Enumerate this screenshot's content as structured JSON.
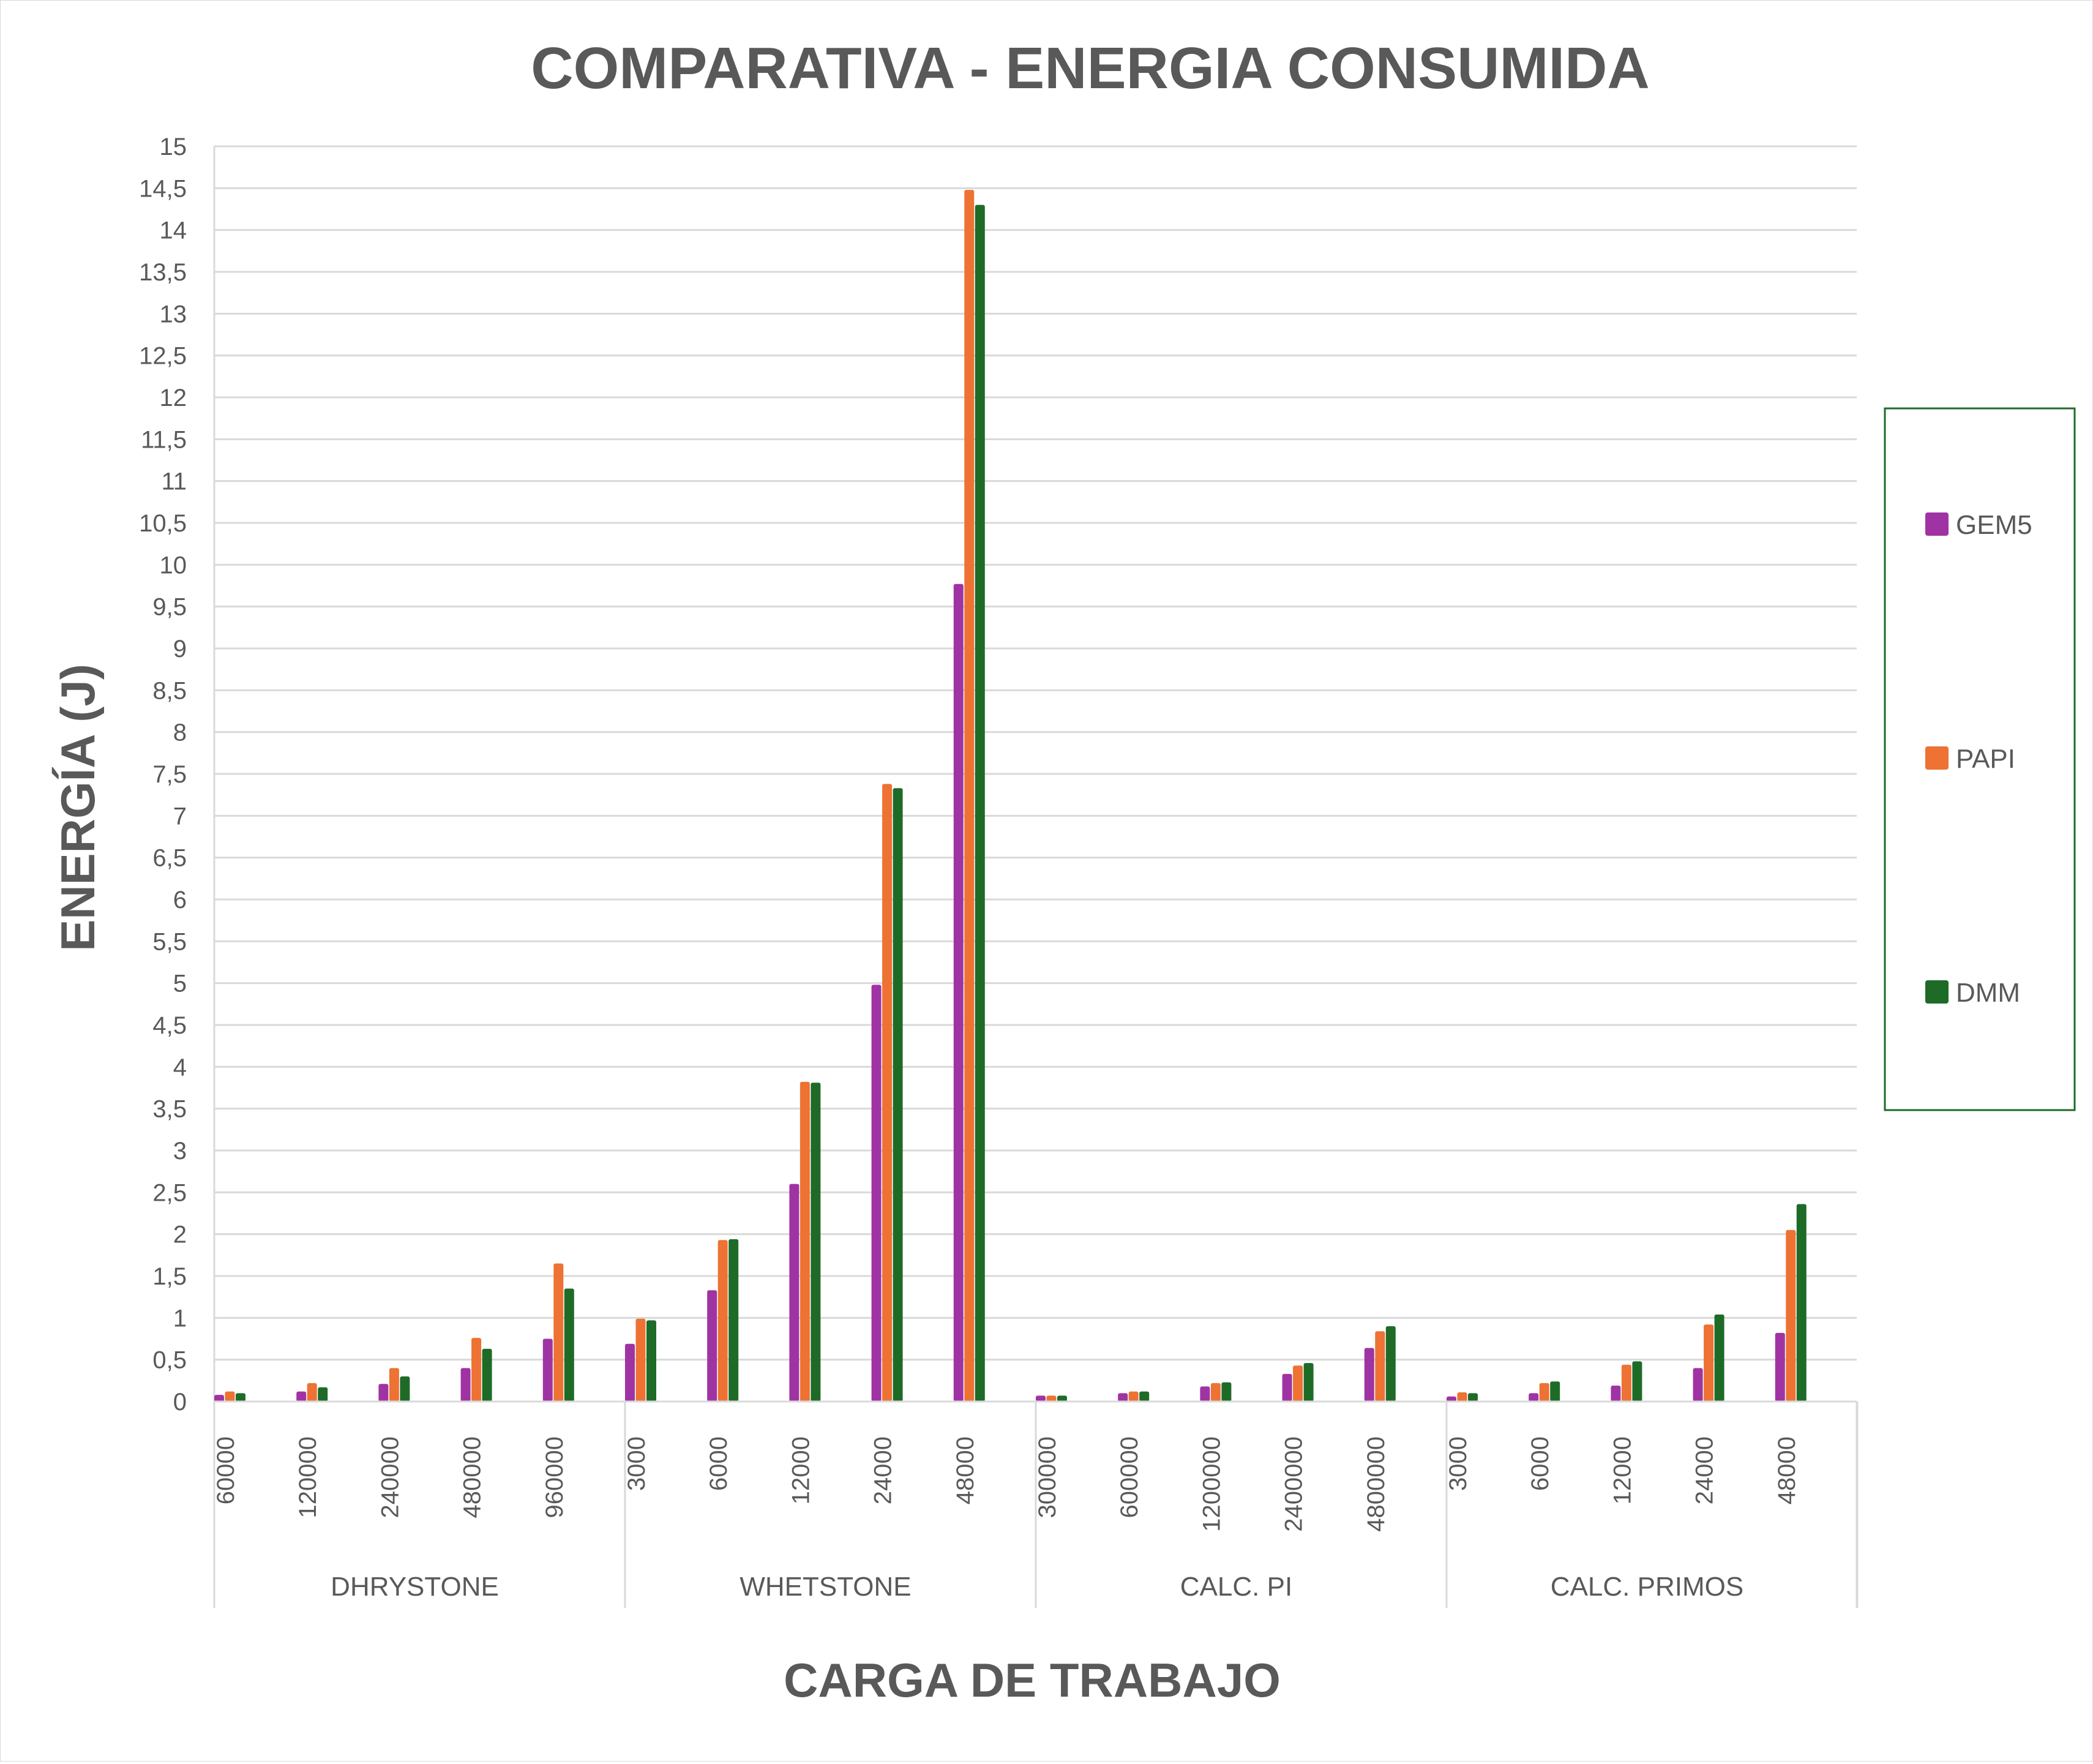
{
  "chart_data": {
    "type": "bar",
    "title": "COMPARATIVA - ENERGIA CONSUMIDA",
    "xlabel": "CARGA DE TRABAJO",
    "ylabel": "ENERGÍA (J)",
    "ylim": [
      0,
      15
    ],
    "ytick_step": 0.5,
    "grid": true,
    "legend_position": "right",
    "groups": [
      {
        "name": "DHRYSTONE",
        "categories": [
          "60000",
          "120000",
          "240000",
          "480000",
          "960000"
        ]
      },
      {
        "name": "WHETSTONE",
        "categories": [
          "3000",
          "6000",
          "12000",
          "24000",
          "48000"
        ]
      },
      {
        "name": "CALC. PI",
        "categories": [
          "300000",
          "600000",
          "1200000",
          "2400000",
          "4800000"
        ]
      },
      {
        "name": "CALC. PRIMOS",
        "categories": [
          "3000",
          "6000",
          "12000",
          "24000",
          "48000"
        ]
      }
    ],
    "categories": [
      "60000",
      "120000",
      "240000",
      "480000",
      "960000",
      "3000",
      "6000",
      "12000",
      "24000",
      "48000",
      "300000",
      "600000",
      "1200000",
      "2400000",
      "4800000",
      "3000",
      "6000",
      "12000",
      "24000",
      "48000"
    ],
    "series": [
      {
        "name": "GEM5",
        "color": "#a033a3",
        "values": [
          0.08,
          0.12,
          0.21,
          0.4,
          0.75,
          0.69,
          1.33,
          2.6,
          4.98,
          9.77,
          0.07,
          0.1,
          0.18,
          0.33,
          0.64,
          0.06,
          0.1,
          0.19,
          0.4,
          0.82
        ]
      },
      {
        "name": "PAPI",
        "color": "#ed7233",
        "values": [
          0.12,
          0.22,
          0.4,
          0.76,
          1.65,
          0.99,
          1.93,
          3.82,
          7.38,
          14.48,
          0.07,
          0.12,
          0.22,
          0.43,
          0.84,
          0.11,
          0.22,
          0.44,
          0.92,
          2.05
        ]
      },
      {
        "name": "DMM",
        "color": "#1e6b28",
        "values": [
          0.1,
          0.17,
          0.3,
          0.63,
          1.35,
          0.97,
          1.94,
          3.81,
          7.33,
          14.3,
          0.07,
          0.12,
          0.23,
          0.46,
          0.9,
          0.1,
          0.24,
          0.48,
          1.04,
          2.36
        ]
      }
    ]
  }
}
